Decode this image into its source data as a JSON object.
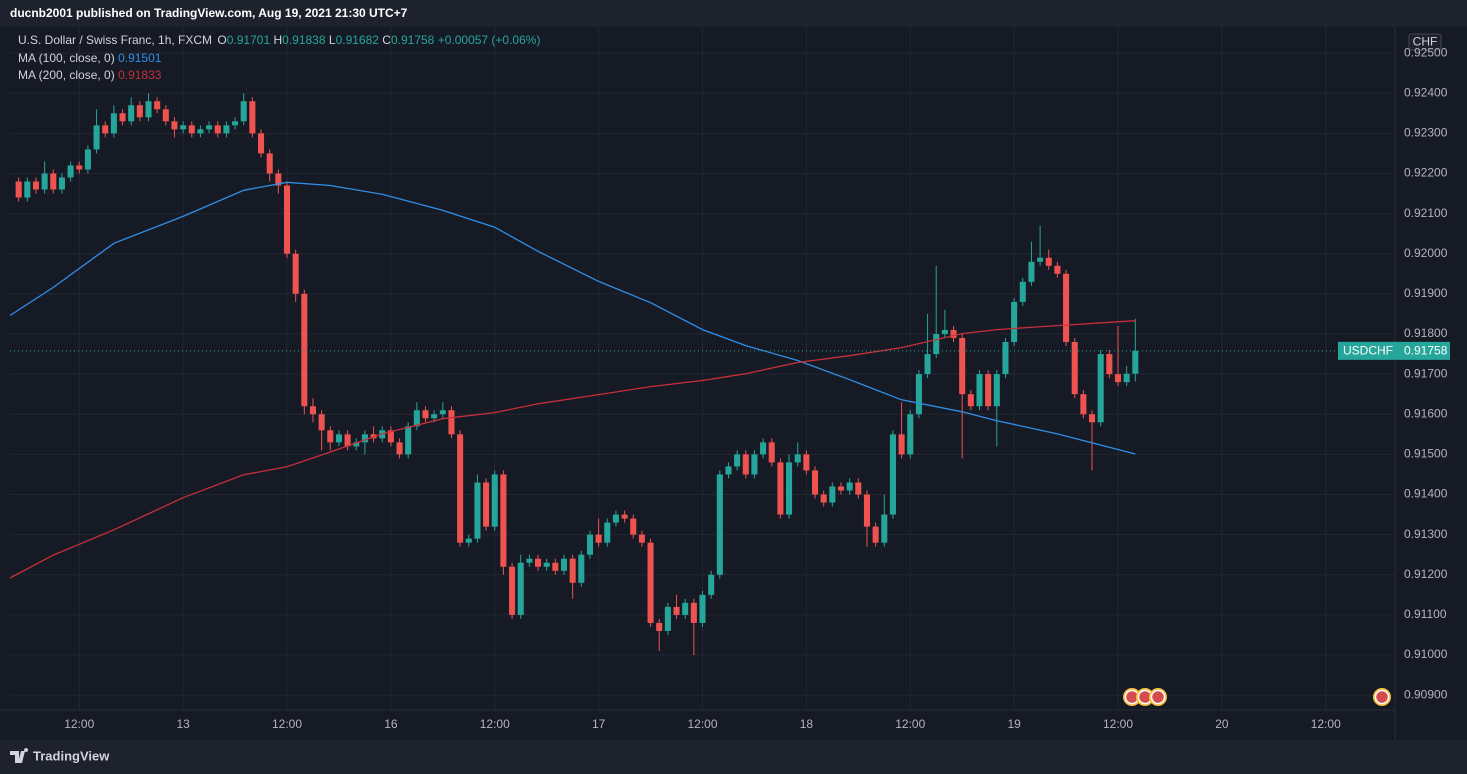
{
  "header": {
    "publisher": "ducnb2001 published on TradingView.com, Aug 19, 2021 21:30 UTC+7"
  },
  "chart_data": {
    "type": "candlestick",
    "title": "U.S. Dollar / Swiss Franc, 1h, FXCM",
    "ohlc_labels": {
      "open": "O",
      "high": "H",
      "low": "L",
      "close": "C"
    },
    "change": "+0.00057 (+0.06%)",
    "currency": "CHF",
    "symbol": "USDCHF",
    "up_color": "#26a69a",
    "down_color": "#ef5350",
    "grid": true,
    "x": [
      -7,
      -6,
      -5,
      -4,
      -3,
      -2,
      -1,
      0,
      1,
      2,
      3,
      4,
      5,
      6,
      7,
      8,
      9,
      10,
      11,
      12,
      13,
      14,
      15,
      16,
      17,
      18,
      19,
      20,
      21,
      22,
      23,
      24,
      25,
      26,
      27,
      28,
      29,
      30,
      31,
      32,
      33,
      34,
      35,
      36,
      37,
      38,
      39,
      40,
      41,
      42,
      43,
      44,
      45,
      46,
      47,
      48,
      49,
      50,
      51,
      52,
      53,
      54,
      55,
      56,
      57,
      58,
      59,
      60,
      61,
      62,
      63,
      64,
      65,
      66,
      67,
      68,
      69,
      70,
      71,
      72,
      73,
      74,
      75,
      76,
      77,
      78,
      79,
      80,
      81,
      82,
      83,
      84,
      85,
      86,
      87,
      88,
      89,
      90,
      91,
      92,
      93,
      94,
      95,
      96,
      97,
      98,
      99,
      100,
      101,
      102,
      103,
      104,
      105,
      106,
      107,
      108,
      109,
      110,
      111,
      112,
      113,
      114,
      115,
      116,
      117,
      118,
      119,
      120,
      121,
      122
    ],
    "open": [
      0.9218,
      0.9214,
      0.9218,
      0.9216,
      0.922,
      0.9216,
      0.9219,
      0.9222,
      0.9221,
      0.9226,
      0.9232,
      0.923,
      0.9235,
      0.9233,
      0.9237,
      0.9234,
      0.9238,
      0.9236,
      0.9233,
      0.9231,
      0.9232,
      0.923,
      0.9231,
      0.9232,
      0.923,
      0.9232,
      0.9233,
      0.9238,
      0.923,
      0.9225,
      0.922,
      0.9217,
      0.92,
      0.919,
      0.9162,
      0.916,
      0.9156,
      0.9153,
      0.9155,
      0.9152,
      0.9153,
      0.9155,
      0.9154,
      0.9156,
      0.9153,
      0.915,
      0.9157,
      0.9161,
      0.9159,
      0.916,
      0.9161,
      0.9155,
      0.9128,
      0.9129,
      0.9143,
      0.9132,
      0.9145,
      0.9122,
      0.911,
      0.9123,
      0.9124,
      0.9122,
      0.9123,
      0.9121,
      0.9124,
      0.9118,
      0.9125,
      0.913,
      0.9128,
      0.9133,
      0.9135,
      0.9134,
      0.913,
      0.9128,
      0.9108,
      0.9106,
      0.9112,
      0.911,
      0.9113,
      0.9108,
      0.9115,
      0.912,
      0.9145,
      0.9147,
      0.915,
      0.9145,
      0.915,
      0.9153,
      0.9148,
      0.9135,
      0.9148,
      0.915,
      0.9146,
      0.914,
      0.9138,
      0.9142,
      0.9141,
      0.9143,
      0.914,
      0.9132,
      0.9128,
      0.9135,
      0.9155,
      0.915,
      0.916,
      0.917,
      0.9175,
      0.918,
      0.9181,
      0.9179,
      0.9165,
      0.9162,
      0.917,
      0.9162,
      0.917,
      0.9178,
      0.9188,
      0.9193,
      0.9198,
      0.9199,
      0.9197,
      0.9195,
      0.9178,
      0.9165,
      0.916,
      0.9158,
      0.9175,
      0.917,
      0.9168,
      0.91701
    ],
    "high": [
      0.9219,
      0.9219,
      0.9219,
      0.9223,
      0.9221,
      0.922,
      0.9223,
      0.9223,
      0.9227,
      0.9236,
      0.9233,
      0.9237,
      0.9236,
      0.9239,
      0.9238,
      0.924,
      0.9239,
      0.9237,
      0.9234,
      0.9233,
      0.9233,
      0.9232,
      0.9233,
      0.9233,
      0.9233,
      0.9234,
      0.924,
      0.9239,
      0.9231,
      0.9226,
      0.9221,
      0.9218,
      0.9201,
      0.9191,
      0.9164,
      0.9161,
      0.9157,
      0.9156,
      0.9156,
      0.9154,
      0.9156,
      0.9157,
      0.9157,
      0.9157,
      0.9154,
      0.9158,
      0.9163,
      0.9162,
      0.9161,
      0.9163,
      0.9162,
      0.9156,
      0.913,
      0.9145,
      0.9144,
      0.9146,
      0.9146,
      0.9123,
      0.9125,
      0.9125,
      0.9125,
      0.9124,
      0.9124,
      0.9125,
      0.9125,
      0.9126,
      0.9131,
      0.9134,
      0.9134,
      0.9136,
      0.9136,
      0.9135,
      0.9131,
      0.9129,
      0.9109,
      0.9113,
      0.9115,
      0.9114,
      0.9114,
      0.9116,
      0.9121,
      0.9146,
      0.9148,
      0.9151,
      0.9151,
      0.9151,
      0.9154,
      0.9154,
      0.9149,
      0.915,
      0.9153,
      0.9151,
      0.9147,
      0.9141,
      0.9143,
      0.9143,
      0.9144,
      0.9144,
      0.9141,
      0.9133,
      0.914,
      0.9156,
      0.9163,
      0.9161,
      0.9171,
      0.9185,
      0.9197,
      0.9186,
      0.9182,
      0.918,
      0.9166,
      0.9171,
      0.9171,
      0.9171,
      0.9179,
      0.9189,
      0.9194,
      0.9203,
      0.9207,
      0.9201,
      0.9198,
      0.9196,
      0.9179,
      0.9166,
      0.9161,
      0.9176,
      0.9176,
      0.9182,
      0.9172,
      0.91838
    ],
    "low": [
      0.9213,
      0.9213,
      0.9215,
      0.9215,
      0.9215,
      0.9215,
      0.9218,
      0.922,
      0.922,
      0.9225,
      0.9229,
      0.9229,
      0.9232,
      0.9232,
      0.9233,
      0.9233,
      0.9235,
      0.9232,
      0.9229,
      0.923,
      0.9229,
      0.9229,
      0.923,
      0.9229,
      0.9229,
      0.9231,
      0.9232,
      0.9229,
      0.9224,
      0.9218,
      0.9215,
      0.9199,
      0.9188,
      0.916,
      0.9158,
      0.9151,
      0.9151,
      0.9152,
      0.9151,
      0.9151,
      0.915,
      0.9153,
      0.9153,
      0.9152,
      0.9149,
      0.9149,
      0.9156,
      0.9158,
      0.9158,
      0.9159,
      0.9154,
      0.9127,
      0.9127,
      0.9128,
      0.9131,
      0.9131,
      0.912,
      0.9109,
      0.9109,
      0.9122,
      0.9121,
      0.9121,
      0.912,
      0.912,
      0.9114,
      0.9117,
      0.9124,
      0.9127,
      0.9127,
      0.9132,
      0.9133,
      0.9129,
      0.9127,
      0.9107,
      0.9101,
      0.9105,
      0.9109,
      0.9109,
      0.91,
      0.9107,
      0.9114,
      0.9119,
      0.9144,
      0.9146,
      0.9144,
      0.9144,
      0.9149,
      0.9147,
      0.9134,
      0.9134,
      0.9147,
      0.9145,
      0.9139,
      0.9137,
      0.9137,
      0.914,
      0.914,
      0.9139,
      0.9127,
      0.9127,
      0.9127,
      0.9134,
      0.9149,
      0.9149,
      0.9159,
      0.9169,
      0.9174,
      0.9179,
      0.9178,
      0.9149,
      0.9161,
      0.9161,
      0.9161,
      0.9152,
      0.9169,
      0.9177,
      0.9187,
      0.9192,
      0.9197,
      0.9196,
      0.9194,
      0.9177,
      0.9164,
      0.9159,
      0.9146,
      0.9157,
      0.9169,
      0.9167,
      0.9167,
      0.91682
    ],
    "close": [
      0.9214,
      0.9218,
      0.9216,
      0.922,
      0.9216,
      0.9219,
      0.9222,
      0.9221,
      0.9226,
      0.9232,
      0.923,
      0.9235,
      0.9233,
      0.9237,
      0.9234,
      0.9238,
      0.9236,
      0.9233,
      0.9231,
      0.9232,
      0.923,
      0.9231,
      0.9232,
      0.923,
      0.9232,
      0.9233,
      0.9238,
      0.923,
      0.9225,
      0.922,
      0.9217,
      0.92,
      0.919,
      0.9162,
      0.916,
      0.9156,
      0.9153,
      0.9155,
      0.9152,
      0.9153,
      0.9155,
      0.9154,
      0.9156,
      0.9153,
      0.915,
      0.9157,
      0.9161,
      0.9159,
      0.916,
      0.9161,
      0.9155,
      0.9128,
      0.9129,
      0.9143,
      0.9132,
      0.9145,
      0.9122,
      0.911,
      0.9123,
      0.9124,
      0.9122,
      0.9123,
      0.9121,
      0.9124,
      0.9118,
      0.9125,
      0.913,
      0.9128,
      0.9133,
      0.9135,
      0.9134,
      0.913,
      0.9128,
      0.9108,
      0.9106,
      0.9112,
      0.911,
      0.9113,
      0.9108,
      0.9115,
      0.912,
      0.9145,
      0.9147,
      0.915,
      0.9145,
      0.915,
      0.9153,
      0.9148,
      0.9135,
      0.9148,
      0.915,
      0.9146,
      0.914,
      0.9138,
      0.9142,
      0.9141,
      0.9143,
      0.914,
      0.9132,
      0.9128,
      0.9135,
      0.9155,
      0.915,
      0.916,
      0.917,
      0.9175,
      0.918,
      0.9181,
      0.9179,
      0.9165,
      0.9162,
      0.917,
      0.9162,
      0.917,
      0.9178,
      0.9188,
      0.9193,
      0.9198,
      0.9199,
      0.9197,
      0.9195,
      0.9178,
      0.9165,
      0.916,
      0.9158,
      0.9175,
      0.917,
      0.9168,
      0.91701,
      0.91758
    ],
    "series": [
      {
        "name": "MA (100, close, 0)",
        "color": "#2f8fe8",
        "x": [
          -8,
          -3,
          4,
          12,
          19,
          24,
          29,
          35,
          42,
          48,
          53,
          60,
          66,
          72,
          77,
          83,
          89,
          95,
          102,
          106,
          113,
          122
        ],
        "values": [
          0.91846,
          0.91916,
          0.92026,
          0.92093,
          0.92158,
          0.92178,
          0.9217,
          0.92148,
          0.92108,
          0.92066,
          0.92006,
          0.91931,
          0.91878,
          0.91811,
          0.91771,
          0.91734,
          0.91686,
          0.91636,
          0.91606,
          0.91584,
          0.91551,
          0.91501
        ]
      },
      {
        "name": "MA (200, close, 0)",
        "color": "#c5303b",
        "x": [
          -8,
          -3,
          4,
          12,
          19,
          24,
          29,
          35,
          42,
          48,
          53,
          60,
          66,
          72,
          77,
          83,
          89,
          95,
          102,
          106,
          113,
          122
        ],
        "values": [
          0.91192,
          0.91249,
          0.91312,
          0.91392,
          0.91449,
          0.91469,
          0.91506,
          0.91551,
          0.91589,
          0.91604,
          0.91626,
          0.91649,
          0.91669,
          0.91684,
          0.91701,
          0.91729,
          0.91746,
          0.91766,
          0.91801,
          0.91811,
          0.91821,
          0.91833
        ]
      }
    ],
    "xlim": [
      -8,
      152
    ],
    "xticks": [
      {
        "value": 0,
        "label": "12:00"
      },
      {
        "value": 12,
        "label": "13"
      },
      {
        "value": 24,
        "label": "12:00"
      },
      {
        "value": 36,
        "label": "16"
      },
      {
        "value": 48,
        "label": "12:00"
      },
      {
        "value": 60,
        "label": "17"
      },
      {
        "value": 72,
        "label": "12:00"
      },
      {
        "value": 84,
        "label": "18"
      },
      {
        "value": 96,
        "label": "12:00"
      },
      {
        "value": 108,
        "label": "19"
      },
      {
        "value": 120,
        "label": "12:00"
      },
      {
        "value": 132,
        "label": "20"
      },
      {
        "value": 144,
        "label": "12:00"
      }
    ],
    "ylim": [
      0.90863,
      0.92565
    ],
    "yticks": [
      {
        "value": 0.909,
        "label": "0.90900"
      },
      {
        "value": 0.91,
        "label": "0.91000"
      },
      {
        "value": 0.911,
        "label": "0.91100"
      },
      {
        "value": 0.912,
        "label": "0.91200"
      },
      {
        "value": 0.913,
        "label": "0.91300"
      },
      {
        "value": 0.914,
        "label": "0.91400"
      },
      {
        "value": 0.915,
        "label": "0.91500"
      },
      {
        "value": 0.916,
        "label": "0.91600"
      },
      {
        "value": 0.917,
        "label": "0.91700"
      },
      {
        "value": 0.918,
        "label": "0.91800"
      },
      {
        "value": 0.919,
        "label": "0.91900"
      },
      {
        "value": 0.92,
        "label": "0.92000"
      },
      {
        "value": 0.921,
        "label": "0.92100"
      },
      {
        "value": 0.922,
        "label": "0.92200"
      },
      {
        "value": 0.923,
        "label": "0.92300"
      },
      {
        "value": 0.924,
        "label": "0.92400"
      },
      {
        "value": 0.925,
        "label": "0.92500"
      }
    ]
  },
  "footer": {
    "brand": "TradingView"
  }
}
